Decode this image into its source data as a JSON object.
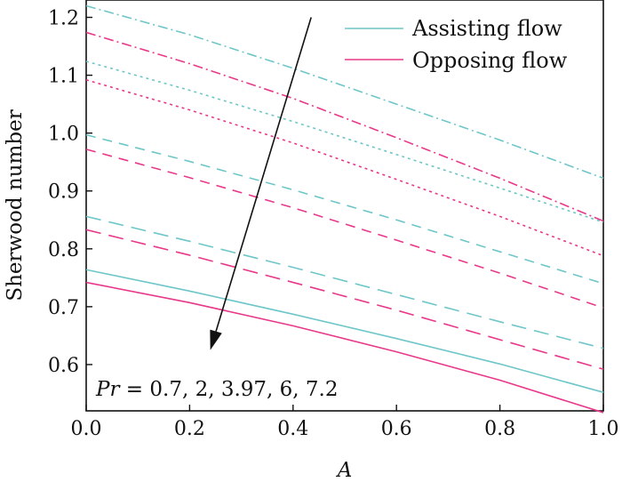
{
  "chart_data": {
    "type": "line",
    "xlabel": "A",
    "ylabel": "Sherwood number",
    "xlim": [
      0.0,
      1.0
    ],
    "ylim": [
      0.52,
      1.23
    ],
    "x_ticks": [
      "0.0",
      "0.2",
      "0.4",
      "0.6",
      "0.8",
      "1.0"
    ],
    "y_ticks": [
      "0.6",
      "0.7",
      "0.8",
      "0.9",
      "1.0",
      "1.1",
      "1.2"
    ],
    "grid": false,
    "legend_position": "top-right",
    "legend": [
      {
        "label": "Assisting flow",
        "color": "#6ec6c8"
      },
      {
        "label": "Opposing flow",
        "color": "#e8388a"
      }
    ],
    "annotation": {
      "italic": "Pr",
      "text": " = 0.7, 2, 3.97, 6, 7.2"
    },
    "arrow": {
      "from": [
        0.435,
        1.2
      ],
      "to": [
        0.24,
        0.625
      ]
    },
    "x": [
      0.0,
      0.2,
      0.4,
      0.6,
      0.8,
      1.0
    ],
    "series": [
      {
        "flow": "assisting",
        "Pr": "0.7",
        "style": "solid",
        "color": "#6ec6c8",
        "values": [
          0.764,
          0.727,
          0.687,
          0.645,
          0.601,
          0.552
        ]
      },
      {
        "flow": "opposing",
        "Pr": "0.7",
        "style": "solid",
        "color": "#e8388a",
        "values": [
          0.742,
          0.707,
          0.667,
          0.622,
          0.573,
          0.517
        ]
      },
      {
        "flow": "assisting",
        "Pr": "2",
        "style": "longdash",
        "color": "#6ec6c8",
        "values": [
          0.856,
          0.813,
          0.768,
          0.721,
          0.674,
          0.628
        ]
      },
      {
        "flow": "opposing",
        "Pr": "2",
        "style": "longdash",
        "color": "#e8388a",
        "values": [
          0.833,
          0.789,
          0.742,
          0.694,
          0.643,
          0.592
        ]
      },
      {
        "flow": "assisting",
        "Pr": "3.97",
        "style": "dash",
        "color": "#6ec6c8",
        "values": [
          0.997,
          0.951,
          0.902,
          0.85,
          0.795,
          0.74
        ]
      },
      {
        "flow": "opposing",
        "Pr": "3.97",
        "style": "dash",
        "color": "#e8388a",
        "values": [
          0.972,
          0.923,
          0.871,
          0.815,
          0.758,
          0.698
        ]
      },
      {
        "flow": "assisting",
        "Pr": "6",
        "style": "dot",
        "color": "#6ec6c8",
        "values": [
          1.124,
          1.074,
          1.02,
          0.963,
          0.905,
          0.846
        ]
      },
      {
        "flow": "opposing",
        "Pr": "6",
        "style": "dot",
        "color": "#e8388a",
        "values": [
          1.092,
          1.04,
          0.983,
          0.92,
          0.856,
          0.788
        ]
      },
      {
        "flow": "assisting",
        "Pr": "7.2",
        "style": "dashdot",
        "color": "#6ec6c8",
        "values": [
          1.22,
          1.17,
          1.112,
          1.05,
          0.988,
          0.922
        ]
      },
      {
        "flow": "opposing",
        "Pr": "7.2",
        "style": "dashdot",
        "color": "#e8388a",
        "values": [
          1.174,
          1.12,
          1.06,
          0.992,
          0.922,
          0.848
        ]
      }
    ]
  }
}
